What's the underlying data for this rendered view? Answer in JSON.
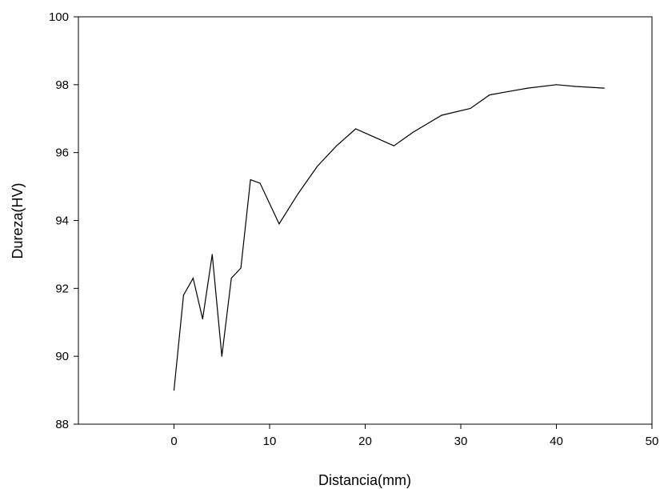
{
  "chart_data": {
    "type": "line",
    "title": "",
    "xlabel": "Distancia(mm)",
    "ylabel": "Dureza(HV)",
    "xlim": [
      -10,
      50
    ],
    "ylim": [
      88,
      100
    ],
    "xticks": [
      "0",
      "10",
      "20",
      "30",
      "40",
      "50"
    ],
    "yticks": [
      "88",
      "90",
      "92",
      "94",
      "96",
      "98",
      "100"
    ],
    "grid": false,
    "legend": "none",
    "line_color": "#000000",
    "series": [
      {
        "x": [
          0,
          1,
          2,
          3,
          4,
          5,
          6,
          7,
          8,
          9,
          11,
          13,
          15,
          17,
          19,
          21,
          23,
          25,
          28,
          31,
          33,
          35,
          37,
          40,
          42,
          45
        ],
        "values": [
          89.0,
          91.8,
          92.3,
          91.1,
          93.0,
          90.0,
          92.3,
          92.6,
          95.2,
          95.1,
          93.9,
          94.8,
          95.6,
          96.2,
          96.7,
          96.45,
          96.2,
          96.6,
          97.1,
          97.3,
          97.7,
          97.8,
          97.9,
          98.0,
          97.95,
          97.9
        ]
      }
    ]
  }
}
